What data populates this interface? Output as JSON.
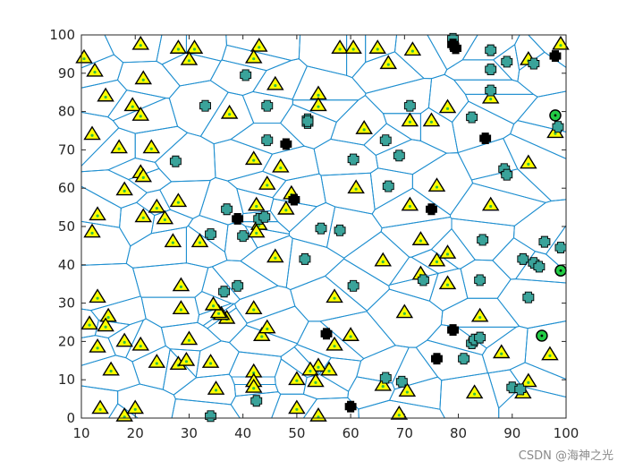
{
  "chart_data": {
    "type": "scatter",
    "title": "",
    "xlabel": "",
    "ylabel": "",
    "xlim": [
      10,
      100
    ],
    "ylim": [
      0,
      100
    ],
    "xticks": [
      10,
      20,
      30,
      40,
      50,
      60,
      70,
      80,
      90,
      100
    ],
    "yticks": [
      0,
      10,
      20,
      30,
      40,
      50,
      60,
      70,
      80,
      90,
      100
    ],
    "grid": false,
    "legend": "none",
    "colors": {
      "voronoi_edges": "#1f8fd0",
      "triangle_fill": "#ffff00",
      "triangle_edge": "#000000",
      "plus_teal": "#3aa39a",
      "plus_black": "#000000",
      "circle_fill": "#22cc44",
      "center_dot": "#33bb44"
    },
    "series": [
      {
        "marker": "triangle",
        "points": [
          [
            10.5,
            94
          ],
          [
            12.5,
            90.5
          ],
          [
            14.5,
            84
          ],
          [
            21,
            97.5
          ],
          [
            21.5,
            88.5
          ],
          [
            28,
            96.5
          ],
          [
            31,
            96.5
          ],
          [
            30,
            93.5
          ],
          [
            43,
            97
          ],
          [
            42,
            94
          ],
          [
            37.5,
            79.5
          ],
          [
            46,
            87
          ],
          [
            19.5,
            81.5
          ],
          [
            21,
            79
          ],
          [
            12,
            74
          ],
          [
            17,
            70.5
          ],
          [
            23,
            70.5
          ],
          [
            21,
            64
          ],
          [
            21.5,
            63
          ],
          [
            18,
            59.5
          ],
          [
            13,
            53
          ],
          [
            12,
            48.5
          ],
          [
            21.5,
            52.5
          ],
          [
            24,
            55
          ],
          [
            25.5,
            52
          ],
          [
            28,
            56.5
          ],
          [
            27,
            46
          ],
          [
            32,
            46
          ],
          [
            42.5,
            55.5
          ],
          [
            43,
            50.5
          ],
          [
            42.5,
            48.5
          ],
          [
            44.5,
            61
          ],
          [
            47,
            65.5
          ],
          [
            42,
            67.5
          ],
          [
            48,
            54.5
          ],
          [
            49,
            58.5
          ],
          [
            54,
            84.5
          ],
          [
            54,
            81.5
          ],
          [
            58,
            96.5
          ],
          [
            60.5,
            96.5
          ],
          [
            65,
            96.5
          ],
          [
            67,
            92.5
          ],
          [
            71.5,
            96
          ],
          [
            93,
            93.5
          ],
          [
            99,
            97.5
          ],
          [
            71,
            77.5
          ],
          [
            75,
            77.5
          ],
          [
            78,
            81
          ],
          [
            86,
            83.5
          ],
          [
            62.5,
            75.5
          ],
          [
            61,
            60
          ],
          [
            76,
            60.5
          ],
          [
            71,
            55.5
          ],
          [
            86,
            55.5
          ],
          [
            93,
            66.5
          ],
          [
            98,
            74.5
          ],
          [
            46,
            42
          ],
          [
            66,
            41
          ],
          [
            73,
            46.5
          ],
          [
            76,
            41
          ],
          [
            78,
            43
          ],
          [
            73,
            37.5
          ],
          [
            78,
            35
          ],
          [
            57,
            31.5
          ],
          [
            70,
            27.5
          ],
          [
            84,
            26.5
          ],
          [
            88,
            17
          ],
          [
            97,
            16.5
          ],
          [
            93,
            9.5
          ],
          [
            92,
            6.5
          ],
          [
            83,
            6.5
          ],
          [
            70.5,
            7
          ],
          [
            66,
            8.5
          ],
          [
            69,
            1
          ],
          [
            57,
            19
          ],
          [
            60,
            21.5
          ],
          [
            54,
            13.5
          ],
          [
            52.5,
            12.5
          ],
          [
            56,
            12.5
          ],
          [
            50,
            10
          ],
          [
            53.5,
            9.5
          ],
          [
            50,
            2.5
          ],
          [
            54,
            0.5
          ],
          [
            43.5,
            21.5
          ],
          [
            44.5,
            23.5
          ],
          [
            42,
            28.5
          ],
          [
            42,
            12
          ],
          [
            42,
            9.5
          ],
          [
            42,
            8
          ],
          [
            37,
            26
          ],
          [
            36,
            27
          ],
          [
            35.5,
            27.5
          ],
          [
            34.5,
            29.5
          ],
          [
            28.5,
            34.5
          ],
          [
            28.5,
            28.5
          ],
          [
            34,
            14.5
          ],
          [
            35,
            7.5
          ],
          [
            30,
            20.5
          ],
          [
            28,
            14
          ],
          [
            29.5,
            15
          ],
          [
            24,
            14.5
          ],
          [
            21,
            19
          ],
          [
            18,
            20
          ],
          [
            15,
            26.5
          ],
          [
            14.5,
            24
          ],
          [
            13,
            31.5
          ],
          [
            11.5,
            24.5
          ],
          [
            13,
            18.5
          ],
          [
            15.5,
            12.5
          ],
          [
            13.5,
            2.5
          ],
          [
            18,
            0.5
          ],
          [
            20,
            2.5
          ]
        ]
      },
      {
        "marker": "plus-teal",
        "points": [
          [
            79,
            99
          ],
          [
            86,
            96
          ],
          [
            86,
            91
          ],
          [
            94,
            92.5
          ],
          [
            89,
            93
          ],
          [
            86,
            85.5
          ],
          [
            82.5,
            78.5
          ],
          [
            71,
            81.5
          ],
          [
            33,
            81.5
          ],
          [
            40.5,
            89.5
          ],
          [
            44.5,
            81.5
          ],
          [
            52,
            78
          ],
          [
            52,
            77
          ],
          [
            66.5,
            72.5
          ],
          [
            60.5,
            67.5
          ],
          [
            69,
            68.5
          ],
          [
            88.5,
            65
          ],
          [
            89,
            63.5
          ],
          [
            67,
            60.5
          ],
          [
            27.5,
            67
          ],
          [
            44.5,
            72.5
          ],
          [
            37,
            54.5
          ],
          [
            40,
            47.5
          ],
          [
            43,
            52
          ],
          [
            44,
            52.5
          ],
          [
            34,
            48
          ],
          [
            36.5,
            33
          ],
          [
            39,
            34.5
          ],
          [
            51.5,
            41.5
          ],
          [
            54.5,
            49.5
          ],
          [
            58,
            49
          ],
          [
            60.5,
            34.5
          ],
          [
            73.5,
            36
          ],
          [
            84,
            36
          ],
          [
            84.5,
            46.5
          ],
          [
            96,
            46
          ],
          [
            99,
            44.5
          ],
          [
            92,
            41.5
          ],
          [
            94,
            40.5
          ],
          [
            95,
            39.5
          ],
          [
            93,
            31.5
          ],
          [
            82.5,
            19.5
          ],
          [
            83,
            20.5
          ],
          [
            84,
            21
          ],
          [
            81,
            15.5
          ],
          [
            90,
            8
          ],
          [
            91.5,
            7.5
          ],
          [
            66.5,
            10.5
          ],
          [
            69.5,
            9.5
          ],
          [
            42.5,
            4.5
          ],
          [
            34,
            0.5
          ],
          [
            52,
            77.5
          ],
          [
            98.5,
            76
          ]
        ]
      },
      {
        "marker": "plus-black",
        "points": [
          [
            79,
            97.5
          ],
          [
            79.5,
            96.5
          ],
          [
            98,
            94.5
          ],
          [
            85,
            73
          ],
          [
            48,
            71.5
          ],
          [
            49.5,
            57
          ],
          [
            39,
            52
          ],
          [
            75,
            54.5
          ],
          [
            79,
            23
          ],
          [
            76,
            15.5
          ],
          [
            55.5,
            22
          ],
          [
            60,
            3
          ]
        ]
      },
      {
        "marker": "circle",
        "points": [
          [
            98,
            79
          ],
          [
            99,
            38.5
          ],
          [
            95.5,
            21.5
          ]
        ]
      }
    ],
    "voronoi_sites": [
      [
        10.5,
        94
      ],
      [
        12.5,
        90.5
      ],
      [
        14.5,
        84
      ],
      [
        21,
        97.5
      ],
      [
        21.5,
        88.5
      ],
      [
        28,
        96.5
      ],
      [
        31,
        96.5
      ],
      [
        30,
        93.5
      ],
      [
        43,
        97
      ],
      [
        42,
        94
      ],
      [
        37.5,
        79.5
      ],
      [
        46,
        87
      ],
      [
        19.5,
        81.5
      ],
      [
        21,
        79
      ],
      [
        12,
        74
      ],
      [
        17,
        70.5
      ],
      [
        23,
        70.5
      ],
      [
        21,
        64
      ],
      [
        21.5,
        63
      ],
      [
        18,
        59.5
      ],
      [
        13,
        53
      ],
      [
        12,
        48.5
      ],
      [
        21.5,
        52.5
      ],
      [
        24,
        55
      ],
      [
        25.5,
        52
      ],
      [
        28,
        56.5
      ],
      [
        27,
        46
      ],
      [
        32,
        46
      ],
      [
        42.5,
        55.5
      ],
      [
        43,
        50.5
      ],
      [
        42.5,
        48.5
      ],
      [
        44.5,
        61
      ],
      [
        47,
        65.5
      ],
      [
        42,
        67.5
      ],
      [
        48,
        54.5
      ],
      [
        49,
        58.5
      ],
      [
        54,
        84.5
      ],
      [
        54,
        81.5
      ],
      [
        58,
        96.5
      ],
      [
        60.5,
        96.5
      ],
      [
        65,
        96.5
      ],
      [
        67,
        92.5
      ],
      [
        71.5,
        96
      ],
      [
        93,
        93.5
      ],
      [
        99,
        97.5
      ],
      [
        71,
        77.5
      ],
      [
        75,
        77.5
      ],
      [
        78,
        81
      ],
      [
        86,
        83.5
      ],
      [
        62.5,
        75.5
      ],
      [
        61,
        60
      ],
      [
        76,
        60.5
      ],
      [
        71,
        55.5
      ],
      [
        86,
        55.5
      ],
      [
        93,
        66.5
      ],
      [
        98,
        74.5
      ],
      [
        46,
        42
      ],
      [
        66,
        41
      ],
      [
        73,
        46.5
      ],
      [
        76,
        41
      ],
      [
        78,
        43
      ],
      [
        73,
        37.5
      ],
      [
        78,
        35
      ],
      [
        57,
        31.5
      ],
      [
        70,
        27.5
      ],
      [
        84,
        26.5
      ],
      [
        88,
        17
      ],
      [
        97,
        16.5
      ],
      [
        93,
        9.5
      ],
      [
        92,
        6.5
      ],
      [
        83,
        6.5
      ],
      [
        70.5,
        7
      ],
      [
        66,
        8.5
      ],
      [
        69,
        1
      ],
      [
        57,
        19
      ],
      [
        60,
        21.5
      ],
      [
        54,
        13.5
      ],
      [
        52.5,
        12.5
      ],
      [
        56,
        12.5
      ],
      [
        50,
        10
      ],
      [
        53.5,
        9.5
      ],
      [
        50,
        2.5
      ],
      [
        54,
        0.5
      ],
      [
        43.5,
        21.5
      ],
      [
        44.5,
        23.5
      ],
      [
        42,
        28.5
      ],
      [
        42,
        12
      ],
      [
        42,
        9.5
      ],
      [
        42,
        8
      ],
      [
        37,
        26
      ],
      [
        36,
        27
      ],
      [
        35.5,
        27.5
      ],
      [
        34.5,
        29.5
      ],
      [
        28.5,
        34.5
      ],
      [
        28.5,
        28.5
      ],
      [
        34,
        14.5
      ],
      [
        35,
        7.5
      ],
      [
        30,
        20.5
      ],
      [
        28,
        14
      ],
      [
        29.5,
        15
      ],
      [
        24,
        14.5
      ],
      [
        21,
        19
      ],
      [
        18,
        20
      ],
      [
        15,
        26.5
      ],
      [
        14.5,
        24
      ],
      [
        13,
        31.5
      ],
      [
        11.5,
        24.5
      ],
      [
        13,
        18.5
      ],
      [
        15.5,
        12.5
      ],
      [
        13.5,
        2.5
      ],
      [
        18,
        0.5
      ],
      [
        20,
        2.5
      ],
      [
        79,
        99
      ],
      [
        86,
        96
      ],
      [
        86,
        91
      ],
      [
        94,
        92.5
      ],
      [
        89,
        93
      ],
      [
        86,
        85.5
      ],
      [
        82.5,
        78.5
      ],
      [
        71,
        81.5
      ],
      [
        33,
        81.5
      ],
      [
        40.5,
        89.5
      ],
      [
        44.5,
        81.5
      ],
      [
        52,
        78
      ],
      [
        66.5,
        72.5
      ],
      [
        60.5,
        67.5
      ],
      [
        69,
        68.5
      ],
      [
        88.5,
        65
      ],
      [
        89,
        63.5
      ],
      [
        67,
        60.5
      ],
      [
        27.5,
        67
      ],
      [
        44.5,
        72.5
      ],
      [
        37,
        54.5
      ],
      [
        40,
        47.5
      ],
      [
        43,
        52
      ],
      [
        34,
        48
      ],
      [
        36.5,
        33
      ],
      [
        39,
        34.5
      ],
      [
        51.5,
        41.5
      ],
      [
        54.5,
        49.5
      ],
      [
        58,
        49
      ],
      [
        60.5,
        34.5
      ],
      [
        73.5,
        36
      ],
      [
        84,
        36
      ],
      [
        84.5,
        46.5
      ],
      [
        96,
        46
      ],
      [
        99,
        44.5
      ],
      [
        92,
        41.5
      ],
      [
        94,
        40.5
      ],
      [
        93,
        31.5
      ],
      [
        82.5,
        19.5
      ],
      [
        84,
        21
      ],
      [
        81,
        15.5
      ],
      [
        90,
        8
      ],
      [
        66.5,
        10.5
      ],
      [
        69.5,
        9.5
      ],
      [
        42.5,
        4.5
      ],
      [
        34,
        0.5
      ],
      [
        98.5,
        76
      ]
    ]
  },
  "watermark": "CSDN @海神之光"
}
